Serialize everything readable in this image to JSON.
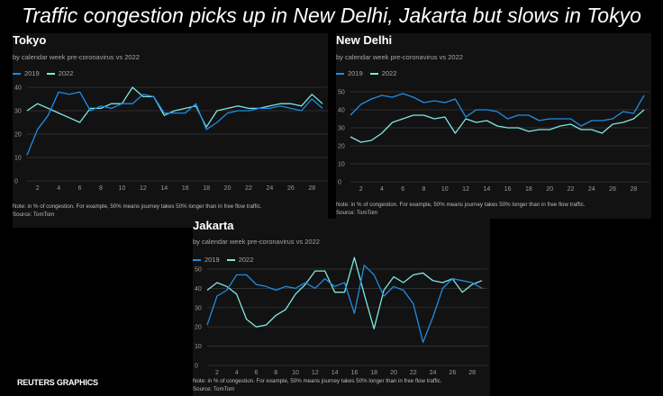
{
  "headline": "Traffic congestion picks up in New Delhi, Jakarta but slows in Tokyo",
  "brand": "REUTERS GRAPHICS",
  "colors": {
    "series_2019": "#1f8ce6",
    "series_2022": "#7fe8df",
    "axis_text": "#9a9a9a",
    "grid": "#3a3a3a",
    "panel_bg": "#121212"
  },
  "chart_data": [
    {
      "type": "line",
      "title": "Tokyo",
      "subtitle": "by calendar week pre-coronavirus vs 2022",
      "x": [
        1,
        2,
        3,
        4,
        5,
        6,
        7,
        8,
        9,
        10,
        11,
        12,
        13,
        14,
        15,
        16,
        17,
        18,
        19,
        20,
        21,
        22,
        23,
        24,
        25,
        26,
        27,
        28,
        29
      ],
      "xticks": [
        "2",
        "4",
        "6",
        "8",
        "10",
        "12",
        "14",
        "16",
        "18",
        "20",
        "22",
        "24",
        "26",
        "28"
      ],
      "yticks": [
        "0",
        "10",
        "20",
        "30",
        "40"
      ],
      "ylim": [
        0,
        40
      ],
      "series": [
        {
          "name": "2019",
          "values": [
            11,
            22,
            28,
            38,
            37,
            38,
            30,
            32,
            31,
            33,
            33,
            37,
            36,
            29,
            29,
            29,
            33,
            22,
            25,
            29,
            30,
            30,
            31,
            31,
            32,
            31,
            30,
            35,
            31
          ]
        },
        {
          "name": "2022",
          "values": [
            30,
            33,
            31,
            29,
            27,
            25,
            31,
            31,
            33,
            33,
            40,
            36,
            36,
            28,
            30,
            31,
            32,
            23,
            30,
            31,
            32,
            31,
            31,
            32,
            33,
            33,
            32,
            37,
            33
          ]
        }
      ],
      "note": "Note: in % of congestion. For example, 50% means journey takes 50% longer than in free flow traffic.",
      "source": "Source: TomTom"
    },
    {
      "type": "line",
      "title": "New Delhi",
      "subtitle": "by calendar week pre-coronavirus vs 2022",
      "x": [
        1,
        2,
        3,
        4,
        5,
        6,
        7,
        8,
        9,
        10,
        11,
        12,
        13,
        14,
        15,
        16,
        17,
        18,
        19,
        20,
        21,
        22,
        23,
        24,
        25,
        26,
        27,
        28,
        29
      ],
      "xticks": [
        "2",
        "4",
        "6",
        "8",
        "10",
        "12",
        "14",
        "16",
        "18",
        "20",
        "22",
        "24",
        "26",
        "28"
      ],
      "yticks": [
        "0",
        "10",
        "20",
        "30",
        "40",
        "50"
      ],
      "ylim": [
        0,
        50
      ],
      "series": [
        {
          "name": "2019",
          "values": [
            37,
            43,
            46,
            48,
            47,
            49,
            47,
            44,
            45,
            44,
            46,
            36,
            40,
            40,
            39,
            35,
            37,
            37,
            34,
            35,
            35,
            35,
            31,
            34,
            34,
            35,
            39,
            38,
            48
          ]
        },
        {
          "name": "2022",
          "values": [
            25,
            22,
            23,
            27,
            33,
            35,
            37,
            37,
            35,
            36,
            27,
            35,
            33,
            34,
            31,
            30,
            30,
            28,
            29,
            29,
            31,
            32,
            29,
            29,
            27,
            32,
            33,
            35,
            40
          ]
        }
      ],
      "note": "Note: in % of congestion. For example, 50% means journey takes 50% longer than in free flow traffic.",
      "source": "Source: TomTom"
    },
    {
      "type": "line",
      "title": "Jakarta",
      "subtitle": "by calendar week pre-coronavirus vs 2022",
      "x": [
        1,
        2,
        3,
        4,
        5,
        6,
        7,
        8,
        9,
        10,
        11,
        12,
        13,
        14,
        15,
        16,
        17,
        18,
        19,
        20,
        21,
        22,
        23,
        24,
        25,
        26,
        27,
        28,
        29
      ],
      "xticks": [
        "2",
        "4",
        "6",
        "8",
        "10",
        "12",
        "14",
        "16",
        "18",
        "20",
        "22",
        "24",
        "26",
        "28"
      ],
      "yticks": [
        "0",
        "10",
        "20",
        "30",
        "40",
        "50"
      ],
      "ylim": [
        0,
        50
      ],
      "series": [
        {
          "name": "2019",
          "values": [
            21,
            36,
            39,
            47,
            47,
            42,
            41,
            39,
            41,
            40,
            43,
            40,
            45,
            41,
            43,
            27,
            52,
            47,
            36,
            41,
            39,
            32,
            12,
            25,
            40,
            45,
            44,
            43,
            40
          ]
        },
        {
          "name": "2022",
          "values": [
            39,
            43,
            41,
            37,
            24,
            20,
            21,
            26,
            29,
            37,
            42,
            49,
            49,
            38,
            38,
            56,
            37,
            19,
            39,
            46,
            43,
            47,
            48,
            44,
            43,
            45,
            38,
            42,
            44
          ]
        }
      ],
      "note": "Note: in % of congestion. For example, 50% means journey takes 50% longer than in free flow traffic.",
      "source": "Source: TomTom"
    }
  ]
}
